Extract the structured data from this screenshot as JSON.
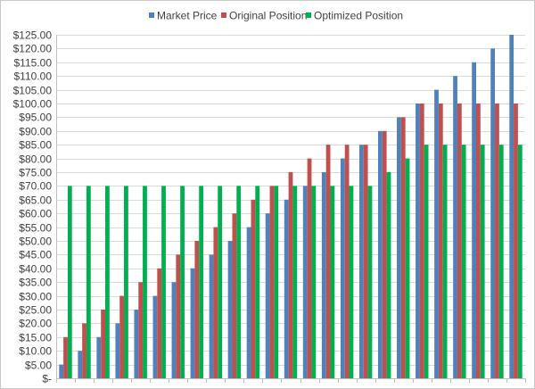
{
  "chart_data": {
    "type": "bar",
    "title": "",
    "xlabel": "",
    "ylabel": "",
    "ylim": [
      0,
      125
    ],
    "yticks": [
      0,
      5,
      10,
      15,
      20,
      25,
      30,
      35,
      40,
      45,
      50,
      55,
      60,
      65,
      70,
      75,
      80,
      85,
      90,
      95,
      100,
      105,
      110,
      115,
      120,
      125
    ],
    "yticklabels": [
      "$-",
      "$5.00",
      "$10.00",
      "$15.00",
      "$20.00",
      "$25.00",
      "$30.00",
      "$35.00",
      "$40.00",
      "$45.00",
      "$50.00",
      "$55.00",
      "$60.00",
      "$65.00",
      "$70.00",
      "$75.00",
      "$80.00",
      "$85.00",
      "$90.00",
      "$95.00",
      "$100.00",
      "$105.00",
      "$110.00",
      "$115.00",
      "$120.00",
      "$125.00"
    ],
    "grid": true,
    "legend_position": "top",
    "categories": [
      "",
      "",
      "",
      "",
      "",
      "",
      "",
      "",
      "",
      "",
      "",
      "",
      "",
      "",
      "",
      "",
      "",
      "",
      "",
      "",
      "",
      "",
      "",
      "",
      ""
    ],
    "series": [
      {
        "name": "Market Price",
        "color": "#4f81bd",
        "values": [
          5,
          10,
          15,
          20,
          25,
          30,
          35,
          40,
          45,
          50,
          55,
          60,
          65,
          70,
          75,
          80,
          85,
          90,
          95,
          100,
          105,
          110,
          115,
          120,
          125
        ]
      },
      {
        "name": "Original Position",
        "color": "#c0504d",
        "values": [
          15,
          20,
          25,
          30,
          35,
          40,
          45,
          50,
          55,
          60,
          65,
          70,
          75,
          80,
          85,
          85,
          85,
          90,
          95,
          100,
          100,
          100,
          100,
          100,
          100
        ]
      },
      {
        "name": "Optimized Position",
        "color": "#00b050",
        "values": [
          70,
          70,
          70,
          70,
          70,
          70,
          70,
          70,
          70,
          70,
          70,
          70,
          70,
          70,
          70,
          70,
          70,
          75,
          80,
          85,
          85,
          85,
          85,
          85,
          85
        ]
      }
    ]
  }
}
